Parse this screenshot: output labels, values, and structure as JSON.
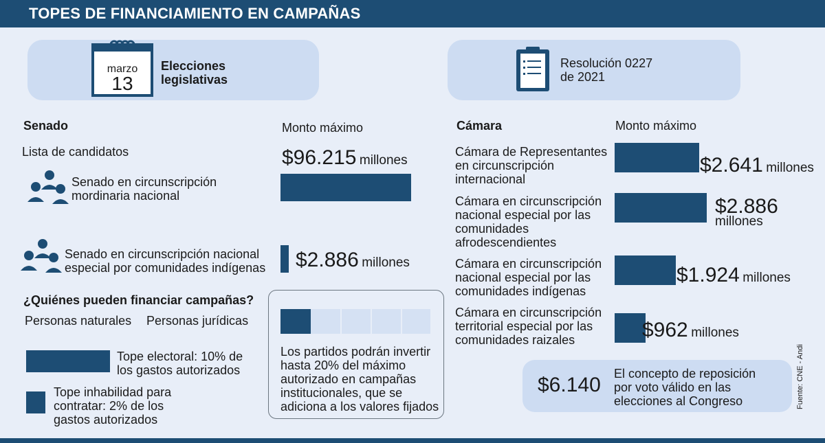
{
  "header": {
    "title": "TOPES DE FINANCIAMIENTO EN CAMPAÑAS"
  },
  "election": {
    "month": "marzo",
    "day": "13",
    "label_line1": "Elecciones",
    "label_line2": "legislativas"
  },
  "resolution": {
    "line1": "Resolución 0227",
    "line2": "de 2021"
  },
  "senado": {
    "title": "Senado",
    "monto_label": "Monto máximo",
    "lista_label": "Lista de candidatos",
    "items": [
      {
        "line1": "Senado en circunscripción",
        "line2": "mordinaria nacional",
        "amount": "$96.215",
        "unit": "millones",
        "value": 96215
      },
      {
        "line1": "Senado en circunscripción nacional",
        "line2": "especial por comunidades indígenas",
        "amount": "$2.886",
        "unit": "millones",
        "value": 2886
      }
    ]
  },
  "financiar": {
    "title": "¿Quiénes pueden financiar campañas?",
    "naturales": "Personas naturales",
    "juridicas": "Personas jurídicas",
    "tope1_line1": "Tope electoral: 10% de",
    "tope1_line2": "los gastos autorizados",
    "tope2_line1": "Tope inhabilidad para",
    "tope2_line2": "contratar: 2% de los",
    "tope2_line3": "gastos autorizados"
  },
  "partidos": {
    "line1": "Los partidos podrán invertir",
    "line2": "hasta 20% del máximo",
    "line3": "autorizado en campañas",
    "line4": "institucionales, que se",
    "line5": "adiciona a los valores fijados",
    "percent": 20
  },
  "camara": {
    "title": "Cámara",
    "monto_label": "Monto máximo",
    "items": [
      {
        "lines": [
          "Cámara de Representantes",
          "en circunscripción",
          "internacional"
        ],
        "amount": "$2.641",
        "unit": "millones",
        "value": 2641
      },
      {
        "lines": [
          "Cámara en circunscripción",
          "nacional especial por las",
          "comunidades",
          "afrodescendientes"
        ],
        "amount": "$2.886",
        "unit": "millones",
        "value": 2886
      },
      {
        "lines": [
          "Cámara en circunscripción",
          "nacional especial por las",
          "comunidades indígenas"
        ],
        "amount": "$1.924",
        "unit": "millones",
        "value": 1924
      },
      {
        "lines": [
          "Cámara en circunscripción",
          "territorial especial por las",
          "comunidades raizales"
        ],
        "amount": "$962",
        "unit": "millones",
        "value": 962
      }
    ]
  },
  "reposicion": {
    "amount": "$6.140",
    "line1": "El concepto de reposición",
    "line2": "por voto válido en las",
    "line3": "elecciones al Congreso"
  },
  "source": "Fuente: CNE - Andi",
  "colors": {
    "navy": "#1d4d74",
    "pill": "#cddcf2",
    "bg": "#e8eef8"
  },
  "chart_data": {
    "type": "bar",
    "categories": [
      "Cámara de Representantes en circunscripción internacional",
      "Cámara en circunscripción nacional especial por las comunidades afrodescendientes",
      "Cámara en circunscripción nacional especial por las comunidades indígenas",
      "Cámara en circunscripción territorial especial por las comunidades raizales"
    ],
    "values": [
      2641,
      2886,
      1924,
      962
    ]
  }
}
